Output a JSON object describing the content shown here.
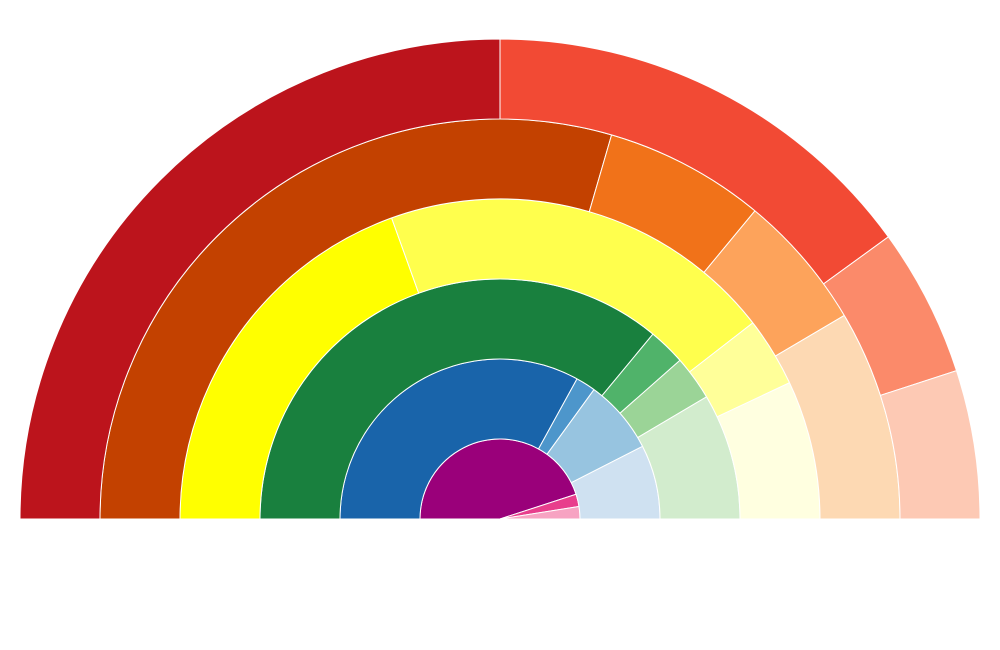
{
  "chart_data": {
    "type": "nested-semicircle-donut",
    "title": "",
    "rings": [
      {
        "name": "",
        "segments": [
          {
            "value": 90,
            "color": "#9a007a"
          },
          {
            "value": 5,
            "color": "#e83e8c"
          },
          {
            "value": 5,
            "color": "#f7a3c2"
          }
        ]
      },
      {
        "name": "",
        "segments": [
          {
            "value": 66,
            "color": "#1964aa"
          },
          {
            "value": 4,
            "color": "#4d96cb"
          },
          {
            "value": 15,
            "color": "#97c4e0"
          },
          {
            "value": 15,
            "color": "#cfe1f1"
          }
        ]
      },
      {
        "name": "",
        "segments": [
          {
            "value": 72,
            "color": "#19803e"
          },
          {
            "value": 5,
            "color": "#50b36a"
          },
          {
            "value": 6,
            "color": "#9bd497"
          },
          {
            "value": 17,
            "color": "#d2eccd"
          }
        ]
      },
      {
        "name": "",
        "segments": [
          {
            "value": 39,
            "color": "#ffff00"
          },
          {
            "value": 40,
            "color": "#ffff4d"
          },
          {
            "value": 7,
            "color": "#ffff99"
          },
          {
            "value": 14,
            "color": "#ffffe0"
          }
        ]
      },
      {
        "name": "",
        "segments": [
          {
            "value": 59,
            "color": "#c34100"
          },
          {
            "value": 13,
            "color": "#f17219"
          },
          {
            "value": 11,
            "color": "#fda35b"
          },
          {
            "value": 17,
            "color": "#fdd9b3"
          }
        ]
      },
      {
        "name": "",
        "segments": [
          {
            "value": 50,
            "color": "#bc141c"
          },
          {
            "value": 30,
            "color": "#f24a34"
          },
          {
            "value": 10,
            "color": "#fb8a6a"
          },
          {
            "value": 10,
            "color": "#fdc9b4"
          }
        ]
      }
    ],
    "legend": "none",
    "grid": false
  }
}
